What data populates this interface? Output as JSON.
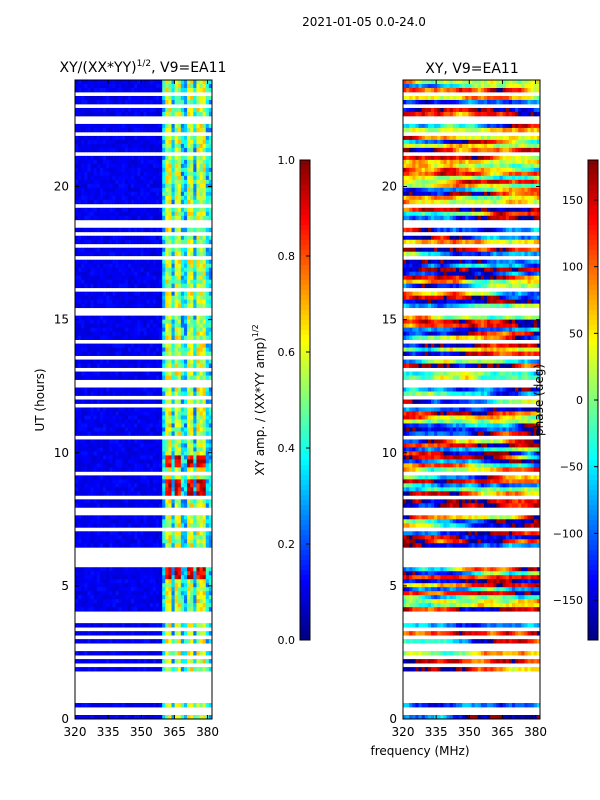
{
  "suptitle": "2021-01-05 0.0-24.0",
  "chart_data": [
    {
      "type": "heatmap",
      "title": "XY/(XX*YY)^1/2, V9=EA11",
      "title_main": "XY/(XX*YY)",
      "title_sup": "1/2",
      "title_tail": ", V9=EA11",
      "xlabel": "",
      "ylabel": "UT (hours)",
      "xlim": [
        320,
        382
      ],
      "ylim": [
        0,
        24
      ],
      "xticks": [
        "320",
        "335",
        "350",
        "365",
        "380"
      ],
      "xtick_values": [
        320,
        335,
        350,
        365,
        380
      ],
      "yticks": [
        "0",
        "5",
        "10",
        "15",
        "20"
      ],
      "ytick_values": [
        0,
        5,
        10,
        15,
        20
      ],
      "colorbar": {
        "label": "XY amp. / (XX*YY amp)^1/2",
        "label_main": "XY amp. / (XX*YY amp)",
        "label_sup": "1/2",
        "range": [
          0.0,
          1.0
        ],
        "ticks": [
          "0.0",
          "0.2",
          "0.4",
          "0.6",
          "0.8",
          "1.0"
        ],
        "tick_values": [
          0.0,
          0.2,
          0.4,
          0.6,
          0.8,
          1.0
        ]
      },
      "colormap": "jet",
      "bright_channels_mhz": [
        362,
        367,
        372,
        377
      ],
      "high_amp_hours": [
        5.5,
        8.7,
        9.7
      ]
    },
    {
      "type": "heatmap",
      "title": "XY, V9=EA11",
      "xlabel": "frequency (MHz)",
      "ylabel": "",
      "xlim": [
        320,
        382
      ],
      "ylim": [
        0,
        24
      ],
      "xticks": [
        "320",
        "335",
        "350",
        "365",
        "380"
      ],
      "xtick_values": [
        320,
        335,
        350,
        365,
        380
      ],
      "yticks": [
        "0",
        "5",
        "10",
        "15",
        "20"
      ],
      "ytick_values": [
        0,
        5,
        10,
        15,
        20
      ],
      "colorbar": {
        "label": "phase (deg)",
        "range": [
          -180,
          180
        ],
        "ticks": [
          "−150",
          "−100",
          "−50",
          "0",
          "50",
          "100",
          "150"
        ],
        "tick_values": [
          -150,
          -100,
          -50,
          0,
          50,
          100,
          150
        ]
      },
      "colormap": "jet"
    }
  ],
  "gap_hours": [
    0.3,
    0.7,
    0.9,
    1.2,
    1.5,
    1.7,
    2.0,
    2.3,
    2.6,
    2.8,
    3.1,
    3.4,
    3.7,
    3.9,
    5.8,
    6.0,
    6.2,
    6.4,
    7.1,
    7.8,
    8.3,
    9.2,
    10.6,
    11.8,
    12.1,
    12.6,
    13.1,
    13.6,
    14.2,
    15.3,
    16.1,
    17.3,
    17.8,
    18.2,
    18.6,
    19.3,
    21.2,
    22.0,
    22.5,
    23.0,
    23.5
  ]
}
